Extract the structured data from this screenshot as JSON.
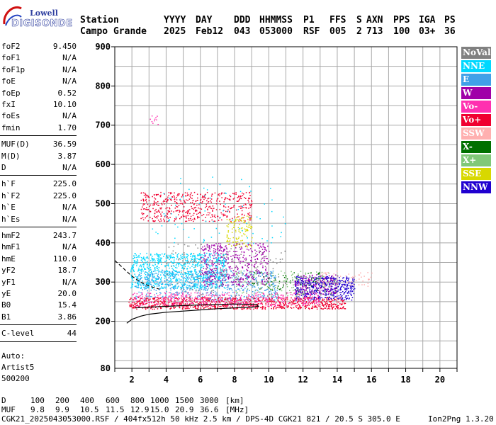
{
  "logo": {
    "line1": "Lowell",
    "line2": "DIGISONDE"
  },
  "header": {
    "labels": [
      "Station",
      "YYYY",
      "DAY",
      "DDD",
      "HHMMSS",
      "P1",
      "FFS",
      "S",
      "AXN",
      "PPS",
      "IGA",
      "PS"
    ],
    "values": [
      "Campo Grande",
      "2025",
      "Feb12",
      "043",
      "053000",
      "RSF",
      "005",
      "2",
      "713",
      "100",
      "03+",
      "36"
    ]
  },
  "params": {
    "g1": [
      {
        "name": "foF2",
        "value": "9.450"
      },
      {
        "name": "foF1",
        "value": "N/A"
      },
      {
        "name": "foF1p",
        "value": "N/A"
      },
      {
        "name": "foE",
        "value": "N/A"
      },
      {
        "name": "foEp",
        "value": "0.52"
      },
      {
        "name": "fxI",
        "value": "10.10"
      },
      {
        "name": "foEs",
        "value": "N/A"
      },
      {
        "name": "fmin",
        "value": "1.70"
      }
    ],
    "g2": [
      {
        "name": "MUF(D)",
        "value": "36.59"
      },
      {
        "name": "M(D)",
        "value": "3.87"
      },
      {
        "name": "D",
        "value": "N/A"
      }
    ],
    "g3": [
      {
        "name": "h`F",
        "value": "225.0"
      },
      {
        "name": "h`F2",
        "value": "225.0"
      },
      {
        "name": "h`E",
        "value": "N/A"
      },
      {
        "name": "h`Es",
        "value": "N/A"
      }
    ],
    "g4": [
      {
        "name": "hmF2",
        "value": "243.7"
      },
      {
        "name": "hmF1",
        "value": "N/A"
      },
      {
        "name": "hmE",
        "value": "110.0"
      },
      {
        "name": "yF2",
        "value": "18.7"
      },
      {
        "name": "yF1",
        "value": "N/A"
      },
      {
        "name": "yE",
        "value": "20.0"
      },
      {
        "name": "B0",
        "value": "15.4"
      },
      {
        "name": "B1",
        "value": "3.86"
      }
    ],
    "g5": [
      {
        "name": "C-level",
        "value": "44"
      }
    ],
    "auto": [
      "Auto:",
      "Artist5",
      "500200"
    ]
  },
  "legend": [
    {
      "label": "NoVal",
      "bg": "#808080",
      "fg": "#ffffff"
    },
    {
      "label": "NNE",
      "bg": "#00d8ff",
      "fg": "#ffffff"
    },
    {
      "label": "E",
      "bg": "#40a0e8",
      "fg": "#ffffff"
    },
    {
      "label": "W",
      "bg": "#a000a8",
      "fg": "#ffffff"
    },
    {
      "label": "Vo-",
      "bg": "#ff30b0",
      "fg": "#ffffff"
    },
    {
      "label": "Vo+",
      "bg": "#f00030",
      "fg": "#ffffff"
    },
    {
      "label": "SSW",
      "bg": "#ffb0b0",
      "fg": "#ffffff"
    },
    {
      "label": "X-",
      "bg": "#007000",
      "fg": "#ffffff"
    },
    {
      "label": "X+",
      "bg": "#80c878",
      "fg": "#ffffff"
    },
    {
      "label": "SSE",
      "bg": "#d8d800",
      "fg": "#ffffff"
    },
    {
      "label": "NNW",
      "bg": "#2000d0",
      "fg": "#ffffff"
    }
  ],
  "footer": {
    "d_label": "D",
    "d_values": [
      "100",
      "200",
      "400",
      "600",
      "800",
      "1000",
      "1500",
      "3000",
      "[km]"
    ],
    "muf_label": "MUF",
    "muf_values": [
      "9.8",
      "9.9",
      "10.5",
      "11.5",
      "12.9",
      "15.0",
      "20.9",
      "36.6",
      "[MHz]"
    ],
    "file_line": "CGK21_2025043053000.RSF / 404fx512h 50 kHz 2.5 km / DPS-4D CGK21 821 / 20.5 S 305.0 E",
    "version": "Ion2Png 1.3.20"
  },
  "chart_data": {
    "type": "scatter",
    "xlim": [
      1,
      21
    ],
    "ylim": [
      80,
      900
    ],
    "x_ticks": [
      2,
      4,
      6,
      8,
      10,
      12,
      14,
      16,
      18,
      20
    ],
    "y_ticks": [
      200,
      300,
      400,
      500,
      600,
      700,
      800,
      900
    ],
    "y_tick_labels": [
      "200",
      "300",
      "400",
      "500",
      "600",
      "700",
      "800",
      "900"
    ],
    "bottom_label": "80",
    "grid": true,
    "profile_solid": [
      [
        1.7,
        195
      ],
      [
        2.0,
        205
      ],
      [
        2.5,
        213
      ],
      [
        3.0,
        218
      ],
      [
        4.0,
        223
      ],
      [
        5.0,
        226
      ],
      [
        6.0,
        229
      ],
      [
        7.0,
        232
      ],
      [
        8.0,
        234
      ],
      [
        9.0,
        236
      ],
      [
        9.4,
        238
      ],
      [
        9.3,
        243
      ],
      [
        8.0,
        244
      ],
      [
        7.0,
        243
      ],
      [
        5.5,
        241
      ],
      [
        4.0,
        238
      ],
      [
        3.0,
        236
      ],
      [
        2.2,
        234
      ]
    ],
    "profile_dashed": [
      [
        1.0,
        355
      ],
      [
        1.5,
        335
      ],
      [
        2.0,
        315
      ],
      [
        2.5,
        300
      ],
      [
        3.0,
        290
      ],
      [
        3.6,
        282
      ]
    ],
    "clusters": [
      {
        "color": "#00d8ff",
        "xr": [
          1.9,
          7.5
        ],
        "yr": [
          285,
          375
        ],
        "n": 900
      },
      {
        "color": "#40a0e8",
        "xr": [
          2.2,
          10.5
        ],
        "yr": [
          255,
          330
        ],
        "n": 600
      },
      {
        "color": "#a000a8",
        "xr": [
          6.0,
          10.0
        ],
        "yr": [
          290,
          400
        ],
        "n": 450
      },
      {
        "color": "#a000a8",
        "xr": [
          11.5,
          14.0
        ],
        "yr": [
          270,
          320
        ],
        "n": 250
      },
      {
        "color": "#2000d0",
        "xr": [
          11.5,
          15.0
        ],
        "yr": [
          255,
          315
        ],
        "n": 450
      },
      {
        "color": "#f00030",
        "xr": [
          1.8,
          14.5
        ],
        "yr": [
          232,
          262
        ],
        "n": 900
      },
      {
        "color": "#ff30b0",
        "xr": [
          2.0,
          13.0
        ],
        "yr": [
          240,
          275
        ],
        "n": 400
      },
      {
        "color": "#f00030",
        "xr": [
          2.5,
          9.0
        ],
        "yr": [
          455,
          530
        ],
        "n": 500
      },
      {
        "color": "#d8d800",
        "xr": [
          7.5,
          9.0
        ],
        "yr": [
          390,
          470
        ],
        "n": 110
      },
      {
        "color": "#80c878",
        "xr": [
          8.0,
          14.0
        ],
        "yr": [
          265,
          330
        ],
        "n": 150
      },
      {
        "color": "#007000",
        "xr": [
          9.0,
          13.0
        ],
        "yr": [
          280,
          330
        ],
        "n": 60
      },
      {
        "color": "#ffb0b0",
        "xr": [
          13.0,
          16.0
        ],
        "yr": [
          290,
          330
        ],
        "n": 60
      },
      {
        "color": "#808080",
        "xr": [
          4.0,
          11.0
        ],
        "yr": [
          250,
          400
        ],
        "n": 150
      },
      {
        "color": "#00d8ff",
        "xr": [
          3.0,
          11.0
        ],
        "yr": [
          400,
          570
        ],
        "n": 80
      },
      {
        "color": "#ff30b0",
        "xr": [
          3.0,
          3.6
        ],
        "yr": [
          700,
          725
        ],
        "n": 10
      }
    ]
  }
}
